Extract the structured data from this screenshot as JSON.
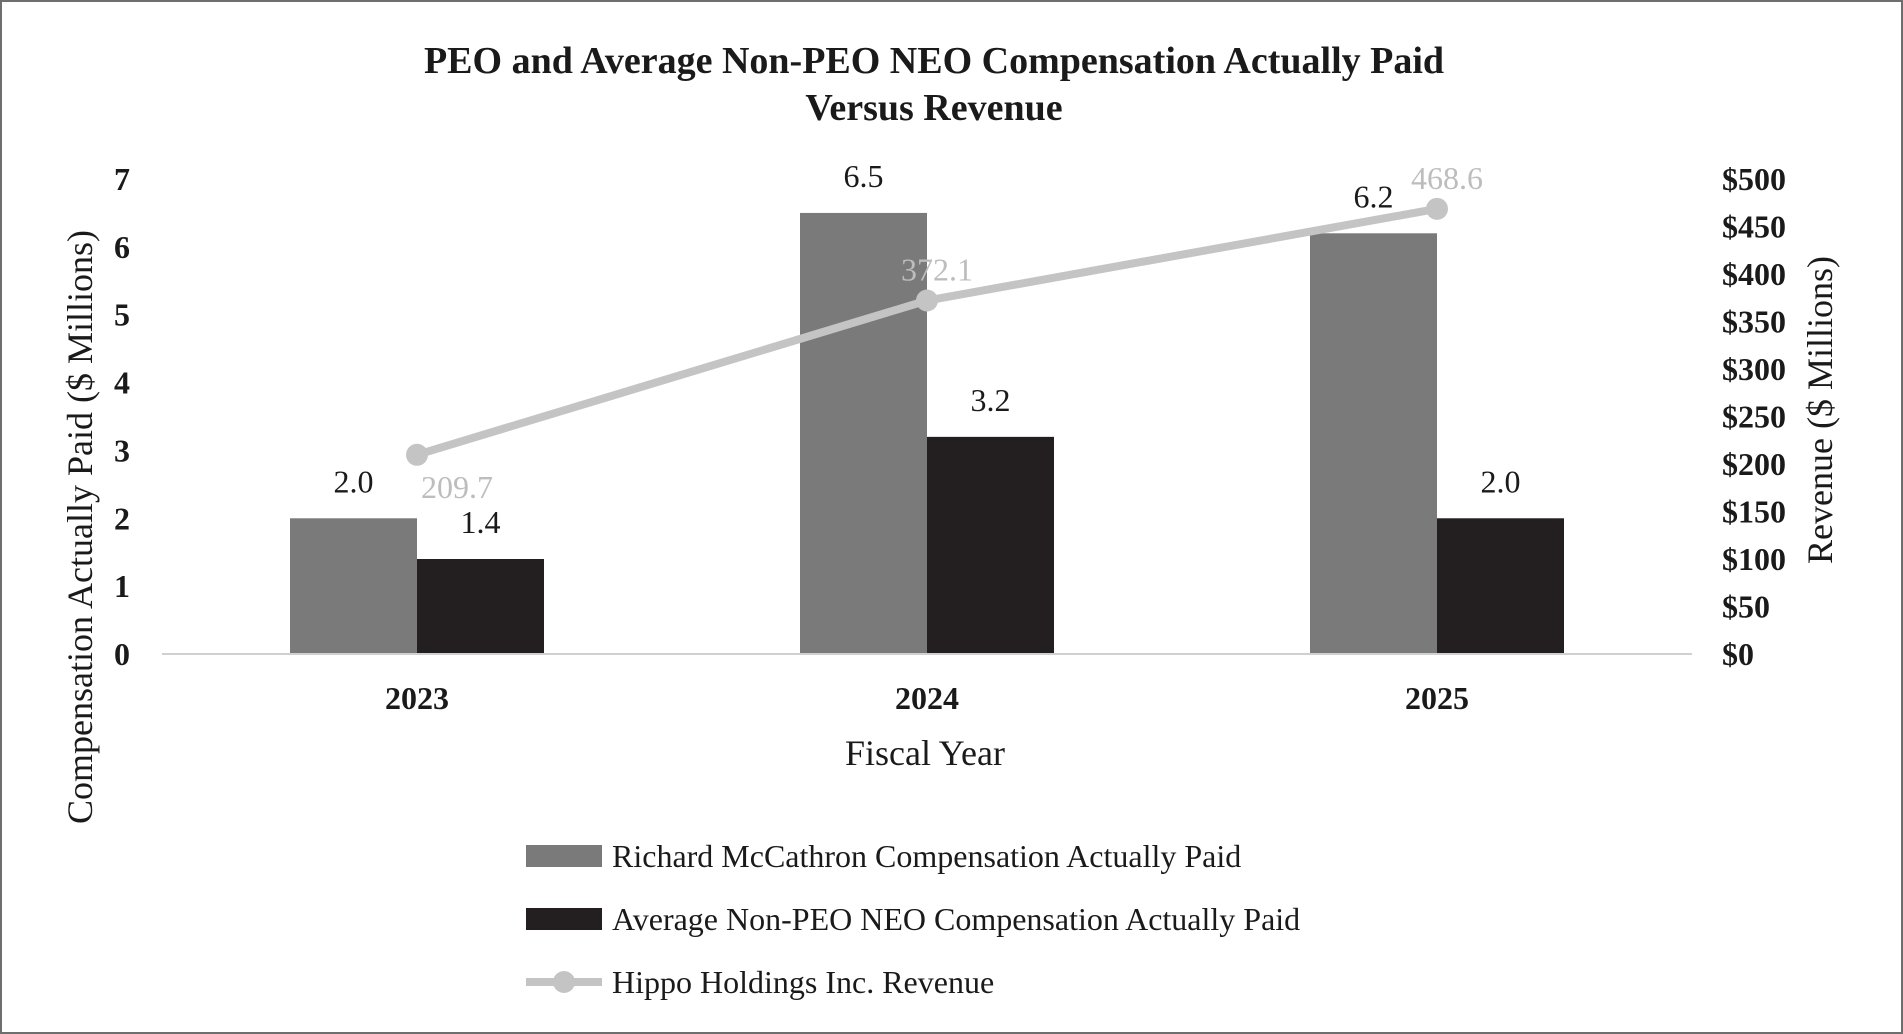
{
  "chart_data": {
    "type": "bar",
    "title": "PEO and Average Non-PEO NEO Compensation Actually Paid",
    "subtitle": "Versus Revenue",
    "xlabel": "Fiscal Year",
    "ylabel": "Compensation Actually Paid ($ Millions)",
    "y2label": "Revenue ($ Millions)",
    "categories": [
      "2023",
      "2024",
      "2025"
    ],
    "ylim": [
      0,
      7
    ],
    "yticks": [
      "0",
      "1",
      "2",
      "3",
      "4",
      "5",
      "6",
      "7"
    ],
    "y2lim": [
      0,
      500
    ],
    "y2ticks": [
      "$0",
      "$50",
      "$100",
      "$150",
      "$200",
      "$250",
      "$300",
      "$350",
      "$400",
      "$450",
      "$500"
    ],
    "series": [
      {
        "name": "Richard McCathron Compensation Actually Paid",
        "kind": "bar",
        "axis": "left",
        "color": "#7a7a7b",
        "values": [
          2.0,
          6.5,
          6.2
        ],
        "labels": [
          "2.0",
          "6.5",
          "6.2"
        ]
      },
      {
        "name": "Average Non-PEO NEO Compensation Actually Paid",
        "kind": "bar",
        "axis": "left",
        "color": "#231f20",
        "values": [
          1.4,
          3.2,
          2.0
        ],
        "labels": [
          "1.4",
          "3.2",
          "2.0"
        ]
      },
      {
        "name": "Hippo Holdings Inc. Revenue",
        "kind": "line",
        "axis": "right",
        "color": "#c4c4c4",
        "values": [
          209.7,
          372.1,
          468.6
        ],
        "labels": [
          "209.7",
          "372.1",
          "468.6"
        ]
      }
    ],
    "grid": false,
    "legend_position": "bottom"
  }
}
